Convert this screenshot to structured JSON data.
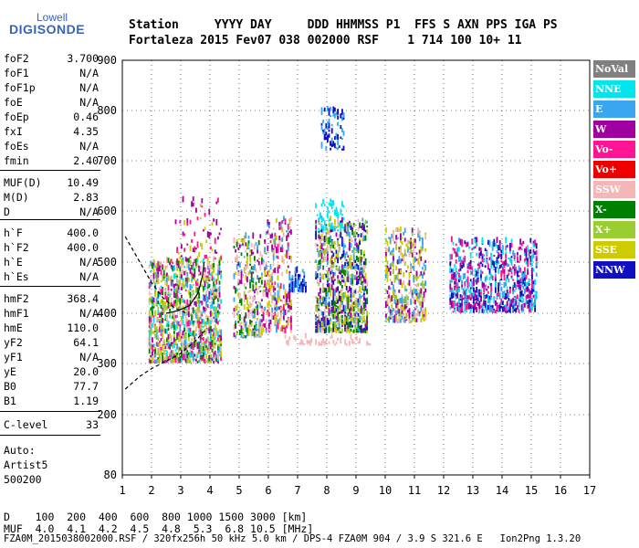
{
  "logo": {
    "line1": "Lowell",
    "line2": "DIGISONDE"
  },
  "header": {
    "line1": "Station     YYYY DAY     DDD HHMMSS P1  FFS S AXN PPS IGA PS",
    "line2": "Fortaleza 2015 Fev07 038 002000 RSF    1 714 100 10+ 11"
  },
  "params": [
    {
      "name": "foF2",
      "value": "3.700"
    },
    {
      "name": "foF1",
      "value": "N/A"
    },
    {
      "name": "foF1p",
      "value": "N/A"
    },
    {
      "name": "foE",
      "value": "N/A"
    },
    {
      "name": "foEp",
      "value": "0.46"
    },
    {
      "name": "fxI",
      "value": "4.35"
    },
    {
      "name": "foEs",
      "value": "N/A"
    },
    {
      "name": "fmin",
      "value": "2.40"
    },
    {
      "name": "MUF(D)",
      "value": "10.49"
    },
    {
      "name": "M(D)",
      "value": "2.83"
    },
    {
      "name": "D",
      "value": "N/A"
    },
    {
      "name": "h`F",
      "value": "400.0"
    },
    {
      "name": "h`F2",
      "value": "400.0"
    },
    {
      "name": "h`E",
      "value": "N/A"
    },
    {
      "name": "h`Es",
      "value": "N/A"
    },
    {
      "name": "hmF2",
      "value": "368.4"
    },
    {
      "name": "hmF1",
      "value": "N/A"
    },
    {
      "name": "hmE",
      "value": "110.0"
    },
    {
      "name": "yF2",
      "value": "64.1"
    },
    {
      "name": "yF1",
      "value": "N/A"
    },
    {
      "name": "yE",
      "value": "20.0"
    },
    {
      "name": "B0",
      "value": "77.7"
    },
    {
      "name": "B1",
      "value": "1.19"
    },
    {
      "name": "C-level",
      "value": "33"
    }
  ],
  "auto": {
    "label": "Auto:",
    "system": "Artist5",
    "version": "500200"
  },
  "legend": [
    {
      "name": "NoVal",
      "color": "#808080"
    },
    {
      "name": "NNE",
      "color": "#00e5ee"
    },
    {
      "name": "E",
      "color": "#3ba6f0"
    },
    {
      "name": "W",
      "color": "#a000a0"
    },
    {
      "name": "Vo-",
      "color": "#ff1493"
    },
    {
      "name": "Vo+",
      "color": "#ee0000"
    },
    {
      "name": "SSW",
      "color": "#f4b6b6"
    },
    {
      "name": "X-",
      "color": "#008000"
    },
    {
      "name": "X+",
      "color": "#9acd32"
    },
    {
      "name": "SSE",
      "color": "#cccc00"
    },
    {
      "name": "NNW",
      "color": "#1010c0"
    }
  ],
  "footer": {
    "d_row": "D    100  200  400  600  800 1000 1500 3000 [km]",
    "muf_row": "MUF  4.0  4.1  4.2  4.5  4.8  5.3  6.8 10.5 [MHz]",
    "file": "FZA0M_2015038002000.RSF / 320fx256h 50 kHz 5.0 km / DPS-4 FZA0M 904 / 3.9 S 321.6 E   Ion2Png 1.3.20"
  },
  "chart_data": {
    "type": "scatter",
    "title": "",
    "xlabel": "",
    "ylabel": "",
    "xlim": [
      1,
      17
    ],
    "ylim": [
      80,
      900
    ],
    "x_ticks": [
      1,
      2,
      3,
      4,
      5,
      6,
      7,
      8,
      9,
      10,
      11,
      12,
      13,
      14,
      15,
      16,
      17
    ],
    "y_ticks": [
      80,
      200,
      300,
      400,
      500,
      600,
      700,
      800,
      900
    ],
    "grid": true,
    "legend_placement": "right",
    "echo_clusters": [
      {
        "fmin": 1.9,
        "fmax": 4.4,
        "hmin": 300,
        "hmax": 500,
        "density": 0.9,
        "colors": [
          "#cccc00",
          "#f4b6b6",
          "#3ba6f0",
          "#9acd32",
          "#008000",
          "#ff1493",
          "#a000a0",
          "#00e5ee"
        ]
      },
      {
        "fmin": 2.8,
        "fmax": 4.4,
        "hmin": 500,
        "hmax": 620,
        "density": 0.15,
        "colors": [
          "#a000a0",
          "#cccc00",
          "#ff1493"
        ]
      },
      {
        "fmin": 4.8,
        "fmax": 5.8,
        "hmin": 350,
        "hmax": 550,
        "density": 0.55,
        "colors": [
          "#cccc00",
          "#f4b6b6",
          "#3ba6f0",
          "#a000a0",
          "#008000"
        ]
      },
      {
        "fmin": 5.8,
        "fmax": 6.8,
        "hmin": 360,
        "hmax": 580,
        "density": 0.5,
        "colors": [
          "#cccc00",
          "#f4b6b6",
          "#a000a0",
          "#ff1493",
          "#3ba6f0"
        ]
      },
      {
        "fmin": 6.7,
        "fmax": 7.3,
        "hmin": 440,
        "hmax": 480,
        "density": 0.9,
        "colors": [
          "#1010c0",
          "#3ba6f0"
        ]
      },
      {
        "fmin": 7.6,
        "fmax": 9.4,
        "hmin": 360,
        "hmax": 580,
        "density": 0.8,
        "colors": [
          "#1010c0",
          "#3ba6f0",
          "#cccc00",
          "#a000a0",
          "#f4b6b6",
          "#9acd32",
          "#008000"
        ]
      },
      {
        "fmin": 7.8,
        "fmax": 8.6,
        "hmin": 720,
        "hmax": 800,
        "density": 0.4,
        "colors": [
          "#1010c0",
          "#3ba6f0"
        ]
      },
      {
        "fmin": 7.6,
        "fmax": 8.6,
        "hmin": 560,
        "hmax": 620,
        "density": 0.3,
        "colors": [
          "#00e5ee"
        ]
      },
      {
        "fmin": 10.0,
        "fmax": 11.4,
        "hmin": 380,
        "hmax": 560,
        "density": 0.6,
        "colors": [
          "#cccc00",
          "#f4b6b6",
          "#3ba6f0",
          "#9acd32",
          "#a000a0"
        ]
      },
      {
        "fmin": 12.2,
        "fmax": 15.2,
        "hmin": 400,
        "hmax": 540,
        "density": 0.7,
        "colors": [
          "#1010c0",
          "#3ba6f0",
          "#a000a0",
          "#00e5ee",
          "#ff1493"
        ]
      },
      {
        "fmin": 6.5,
        "fmax": 9.5,
        "hmin": 335,
        "hmax": 350,
        "density": 0.35,
        "colors": [
          "#f4b6b6"
        ]
      }
    ],
    "traces": [
      {
        "style": "dashed",
        "x": [
          1.1,
          1.6,
          2.0,
          2.4,
          2.8,
          3.2
        ],
        "y": [
          550,
          500,
          460,
          430,
          410,
          400
        ]
      },
      {
        "style": "dashed",
        "x": [
          1.1,
          1.6,
          2.0,
          2.5,
          3.0,
          3.5,
          3.9
        ],
        "y": [
          250,
          275,
          290,
          305,
          320,
          345,
          370
        ]
      },
      {
        "style": "solid",
        "x": [
          2.5,
          2.9,
          3.3,
          3.6,
          3.75,
          3.8
        ],
        "y": [
          400,
          405,
          415,
          440,
          475,
          500
        ]
      }
    ]
  }
}
